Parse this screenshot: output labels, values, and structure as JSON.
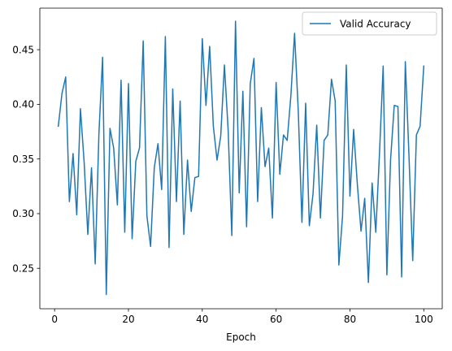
{
  "chart_data": {
    "type": "line",
    "title": "",
    "xlabel": "Epoch",
    "ylabel": "",
    "xlim": [
      -4,
      105
    ],
    "ylim": [
      0.213,
      0.488
    ],
    "xticks": [
      0,
      20,
      40,
      60,
      80,
      100
    ],
    "yticks": [
      0.25,
      0.3,
      0.35,
      0.4,
      0.45
    ],
    "xtick_labels": [
      "0",
      "20",
      "40",
      "60",
      "80",
      "100"
    ],
    "ytick_labels": [
      "0.25",
      "0.30",
      "0.35",
      "0.40",
      "0.45"
    ],
    "grid": false,
    "legend_position": "top-right",
    "series": [
      {
        "name": "Valid Accuracy",
        "color": "#1f77b4",
        "x": [
          1,
          2,
          3,
          4,
          5,
          6,
          7,
          8,
          9,
          10,
          11,
          12,
          13,
          14,
          15,
          16,
          17,
          18,
          19,
          20,
          21,
          22,
          23,
          24,
          25,
          26,
          27,
          28,
          29,
          30,
          31,
          32,
          33,
          34,
          35,
          36,
          37,
          38,
          39,
          40,
          41,
          42,
          43,
          44,
          45,
          46,
          47,
          48,
          49,
          50,
          51,
          52,
          53,
          54,
          55,
          56,
          57,
          58,
          59,
          60,
          61,
          62,
          63,
          64,
          65,
          66,
          67,
          68,
          69,
          70,
          71,
          72,
          73,
          74,
          75,
          76,
          77,
          78,
          79,
          80,
          81,
          82,
          83,
          84,
          85,
          86,
          87,
          88,
          89,
          90,
          91,
          92,
          93,
          94,
          95,
          96,
          97,
          98,
          99,
          100
        ],
        "y": [
          0.38,
          0.41,
          0.425,
          0.311,
          0.355,
          0.299,
          0.396,
          0.347,
          0.281,
          0.342,
          0.254,
          0.373,
          0.443,
          0.226,
          0.378,
          0.36,
          0.308,
          0.422,
          0.283,
          0.419,
          0.277,
          0.348,
          0.36,
          0.458,
          0.298,
          0.27,
          0.342,
          0.364,
          0.322,
          0.462,
          0.269,
          0.414,
          0.311,
          0.403,
          0.281,
          0.349,
          0.302,
          0.333,
          0.334,
          0.46,
          0.399,
          0.453,
          0.38,
          0.349,
          0.371,
          0.436,
          0.377,
          0.28,
          0.476,
          0.319,
          0.412,
          0.288,
          0.419,
          0.442,
          0.311,
          0.397,
          0.343,
          0.36,
          0.296,
          0.42,
          0.336,
          0.372,
          0.367,
          0.408,
          0.465,
          0.394,
          0.292,
          0.401,
          0.289,
          0.318,
          0.381,
          0.296,
          0.367,
          0.372,
          0.423,
          0.403,
          0.253,
          0.298,
          0.436,
          0.316,
          0.377,
          0.327,
          0.284,
          0.314,
          0.237,
          0.328,
          0.283,
          0.355,
          0.435,
          0.244,
          0.349,
          0.399,
          0.398,
          0.242,
          0.439,
          0.352,
          0.257,
          0.372,
          0.38,
          0.435
        ]
      }
    ]
  }
}
